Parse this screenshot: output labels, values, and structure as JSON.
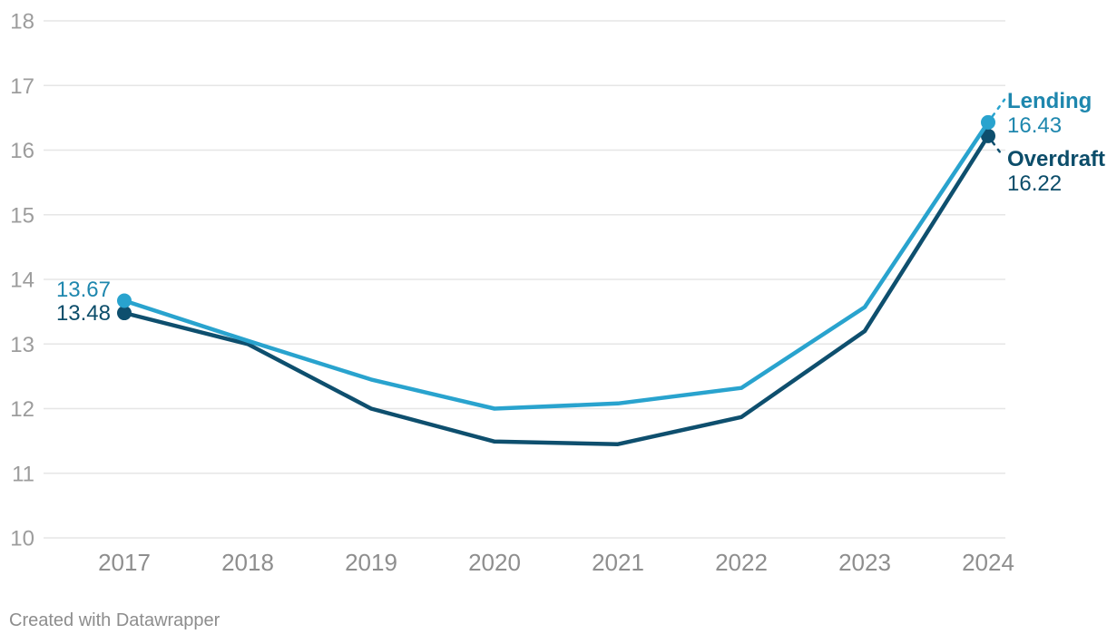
{
  "chart_data": {
    "type": "line",
    "x": [
      2017,
      2018,
      2019,
      2020,
      2021,
      2022,
      2023,
      2024
    ],
    "series": [
      {
        "name": "Lending",
        "values": [
          13.67,
          13.05,
          12.45,
          12.0,
          12.08,
          12.32,
          13.57,
          16.43
        ],
        "start_label": "13.67",
        "end_label": "16.43",
        "line_color": "#29a3ce",
        "label_color": "#1e87ae"
      },
      {
        "name": "Overdraft",
        "values": [
          13.48,
          13.0,
          12.0,
          11.49,
          11.45,
          11.87,
          13.2,
          16.22
        ],
        "start_label": "13.48",
        "end_label": "16.22",
        "line_color": "#0e4f6e",
        "label_color": "#0c4d6a"
      }
    ],
    "title": "",
    "xlabel": "",
    "ylabel": "",
    "ylim": [
      10,
      18
    ],
    "yticks": [
      10,
      11,
      12,
      13,
      14,
      15,
      16,
      17,
      18
    ],
    "grid": "horizontal",
    "legend_position": "inline-right-of-last-point",
    "point_markers": "endpoints-only"
  },
  "colors": {
    "grid": "#e6e6e6",
    "y_axis_text": "#9c9c9c",
    "x_axis_text": "#8e8e8e",
    "background": "#ffffff"
  },
  "footer": {
    "attribution": "Created with Datawrapper"
  }
}
